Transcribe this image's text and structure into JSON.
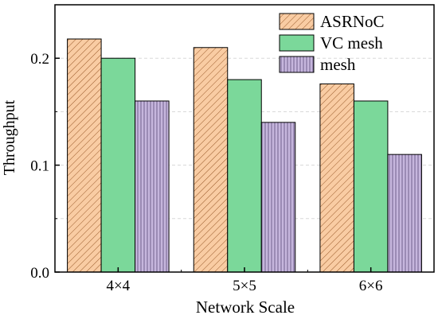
{
  "chart_data": {
    "type": "bar",
    "xlabel": "Network Scale",
    "ylabel": "Throughput",
    "ylim": [
      0,
      0.25
    ],
    "yticks": [
      0.0,
      0.1,
      0.2
    ],
    "ytick_labels": [
      "0.0",
      "0.1",
      "0.2"
    ],
    "grid": "horizontal dashed",
    "legend_position": "top-right",
    "categories": [
      "4×4",
      "5×5",
      "6×6"
    ],
    "series": [
      {
        "name": "ASRNoC",
        "values": [
          0.218,
          0.21,
          0.176
        ],
        "color": "#F9CCA3",
        "pattern": "diagonal-hatch"
      },
      {
        "name": "VC mesh",
        "values": [
          0.2,
          0.18,
          0.16
        ],
        "color": "#7BD89A",
        "pattern": "solid"
      },
      {
        "name": "mesh",
        "values": [
          0.16,
          0.14,
          0.11
        ],
        "color": "#C6B6DD",
        "pattern": "vertical-hatch"
      }
    ]
  }
}
